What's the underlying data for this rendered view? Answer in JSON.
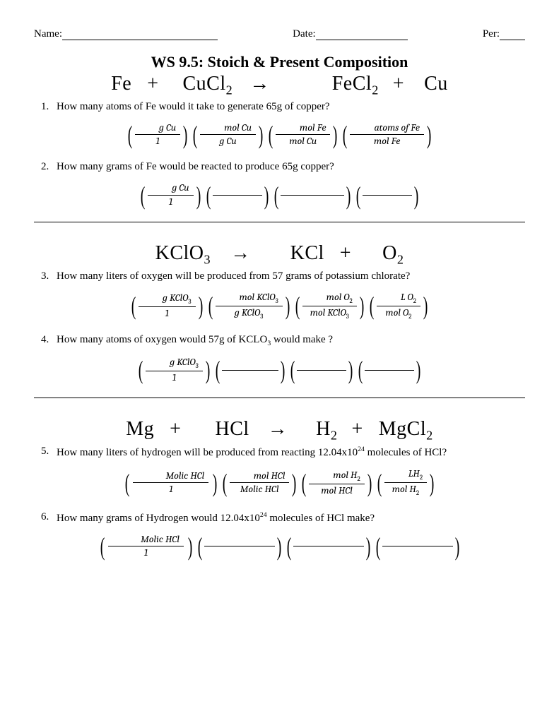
{
  "header": {
    "name_label": "Name:",
    "date_label": "Date:",
    "per_label": "Per:",
    "name_line_w": 220,
    "date_line_w": 130,
    "per_line_w": 36
  },
  "title": "WS 9.5: Stoich & Present Composition",
  "sections": [
    {
      "equation_html": "Fe<span class='sp' style='width:22px'></span>+<span class='sp' style='width:34px'></span>CuCl<sub>2</sub><span class='sp' style='width:24px'></span>→<span class='sp' style='width:88px'></span>FeCl<sub>2</sub><span class='sp' style='width:20px'></span>+<span class='sp' style='width:28px'></span>Cu",
      "questions": [
        {
          "num": "1.",
          "text": "How many atoms of Fe would it take to generate 65g of copper?",
          "factors": [
            {
              "top": "g Cu",
              "bot": "1",
              "topblank": true
            },
            {
              "top": "mol Cu",
              "bot": "g Cu",
              "topblank": true
            },
            {
              "top": "mol Fe",
              "bot": "mol Cu",
              "topblank": true
            },
            {
              "top": "atoms of Fe",
              "bot": "mol Fe",
              "topblank": true
            }
          ]
        },
        {
          "num": "2.",
          "text": "How many grams of Fe would be reacted to produce 65g copper?",
          "factors": [
            {
              "top": "g Cu",
              "bot": "1",
              "topblank": true
            },
            {
              "line": 70
            },
            {
              "line": 90
            },
            {
              "line": 70
            }
          ]
        }
      ]
    },
    {
      "equation_html": "KClO<sub>3</sub><span class='sp' style='width:28px'></span>→<span class='sp' style='width:56px'></span>KCl<span class='sp' style='width:22px'></span>+<span class='sp' style='width:44px'></span>O<sub>2</sub>",
      "questions": [
        {
          "num": "3.",
          "text": "How many liters of oxygen will be produced from 57 grams of potassium chlorate?",
          "factors": [
            {
              "top": "g KClO<sub class='subnum'>3</sub>",
              "bot": "1",
              "topblank": true
            },
            {
              "top": "mol KClO<sub class='subnum'>3</sub>",
              "bot": "g KClO<sub class='subnum'>3</sub>",
              "topblank": true
            },
            {
              "top": "mol O<sub class='subnum'>2</sub>",
              "bot": "mol KClO<sub class='subnum'>3</sub>",
              "topblank": true
            },
            {
              "top": "L O<sub class='subnum'>2</sub>",
              "bot": "mol O<sub class='subnum'>2</sub>",
              "topblank": true
            }
          ]
        },
        {
          "num": "4.",
          "text_html": "How many atoms of oxygen would 57g of KCLO<sub>3</sub> would make ?",
          "factors": [
            {
              "top": "g KClO<sub class='subnum'>3</sub>",
              "bot": "1",
              "topblank": true
            },
            {
              "line": 80
            },
            {
              "line": 70
            },
            {
              "line": 70
            }
          ]
        }
      ]
    },
    {
      "equation_html": "Mg<span class='sp' style='width:22px'></span>+<span class='sp' style='width:48px'></span>HCl<span class='sp' style='width:26px'></span>→<span class='sp' style='width:40px'></span>H<sub>2</sub><span class='sp' style='width:20px'></span>+<span class='sp' style='width:22px'></span>MgCl<sub>2</sub>",
      "no_hr": true,
      "questions": [
        {
          "num": "5.",
          "text_html": "How many liters of hydrogen will be produced from reacting 12.04x10<sup>24</sup> molecules of HCl?",
          "factors": [
            {
              "top": "Molic HCl",
              "bot": "1",
              "topblank": true,
              "wide": true
            },
            {
              "top": "mol HCl",
              "bot": "Molic HCl",
              "topblank": true
            },
            {
              "top": "mol H<sub class='subnum'>2</sub>",
              "bot": "mol HCl",
              "topblank": true
            },
            {
              "top": "LH<sub class='subnum'>2</sub>",
              "bot": "mol H<sub class='subnum'>2</sub>",
              "topblank": true
            }
          ]
        },
        {
          "num": "6.",
          "text_html": "How many grams of Hydrogen would 12.04x10<sup>24</sup> molecules of HCl make?",
          "factors": [
            {
              "top": "Molic HCl",
              "bot": "1",
              "topblank": true,
              "wide": true
            },
            {
              "line": 100
            },
            {
              "line": 100
            },
            {
              "line": 100
            }
          ]
        }
      ]
    }
  ],
  "colors": {
    "fg": "#000000",
    "bg": "#ffffff"
  }
}
